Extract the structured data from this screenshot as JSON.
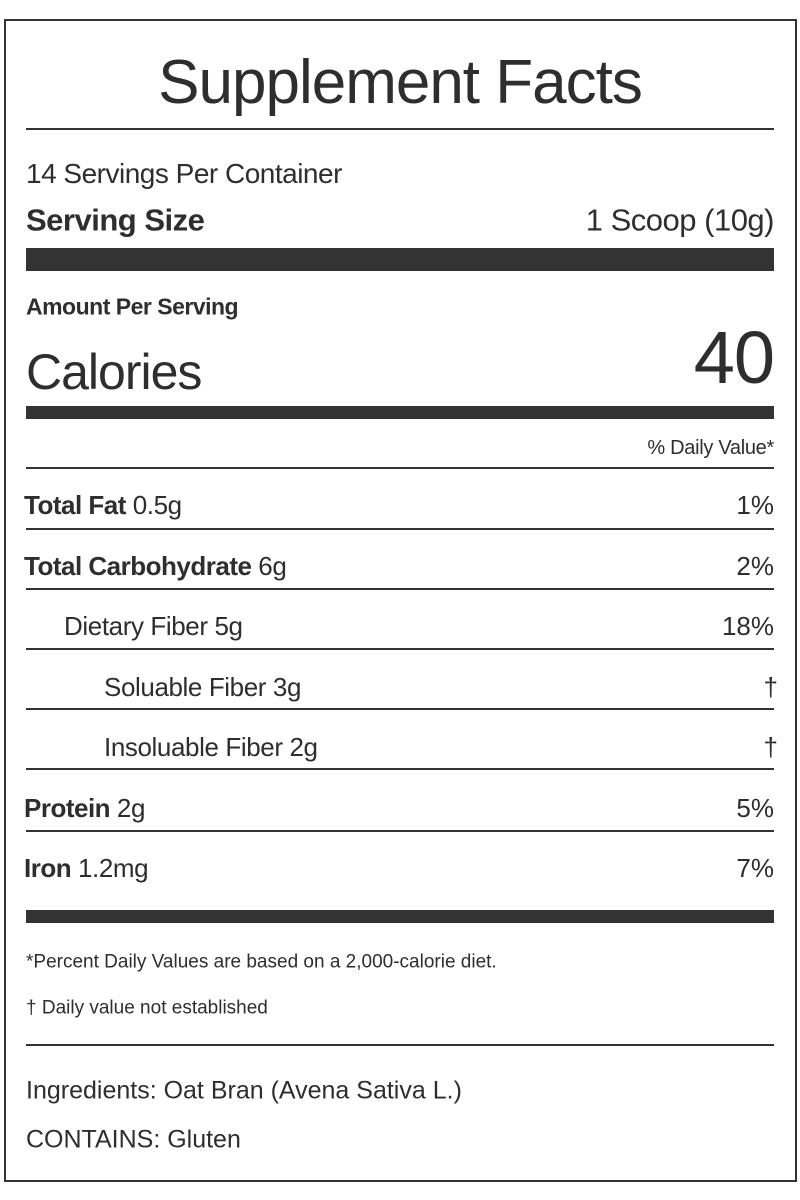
{
  "title": "Supplement Facts",
  "servings_per_container": "14 Servings Per Container",
  "serving_size": {
    "label": "Serving Size",
    "value": "1 Scoop (10g)"
  },
  "amount_per_serving": "Amount Per Serving",
  "calories": {
    "label": "Calories",
    "value": "40"
  },
  "daily_value_header": "% Daily Value*",
  "nutrients": [
    {
      "name": "Total Fat",
      "amount": "0.5g",
      "dv": "1%",
      "indent": 0,
      "bold": true
    },
    {
      "name": "Total Carbohydrate",
      "amount": "6g",
      "dv": "2%",
      "indent": 0,
      "bold": true
    },
    {
      "name": "Dietary Fiber",
      "amount": "5g",
      "dv": "18%",
      "indent": 1,
      "bold": false
    },
    {
      "name": "Soluable Fiber",
      "amount": "3g",
      "dv": "†",
      "indent": 2,
      "bold": false
    },
    {
      "name": "Insoluable Fiber",
      "amount": "2g",
      "dv": "†",
      "indent": 2,
      "bold": false
    },
    {
      "name": "Protein",
      "amount": "2g",
      "dv": "5%",
      "indent": 0,
      "bold": true
    },
    {
      "name": "Iron",
      "amount": "1.2mg",
      "dv": "7%",
      "indent": 0,
      "bold": true
    }
  ],
  "footnotes": {
    "percent": "*Percent Daily Values are based on a 2,000-calorie diet.",
    "dagger": "† Daily value not established"
  },
  "ingredients": "Ingredients: Oat Bran (Avena Sativa L.)",
  "contains": "CONTAINS: Gluten",
  "colors": {
    "ink": "#333333",
    "background": "#ffffff"
  }
}
